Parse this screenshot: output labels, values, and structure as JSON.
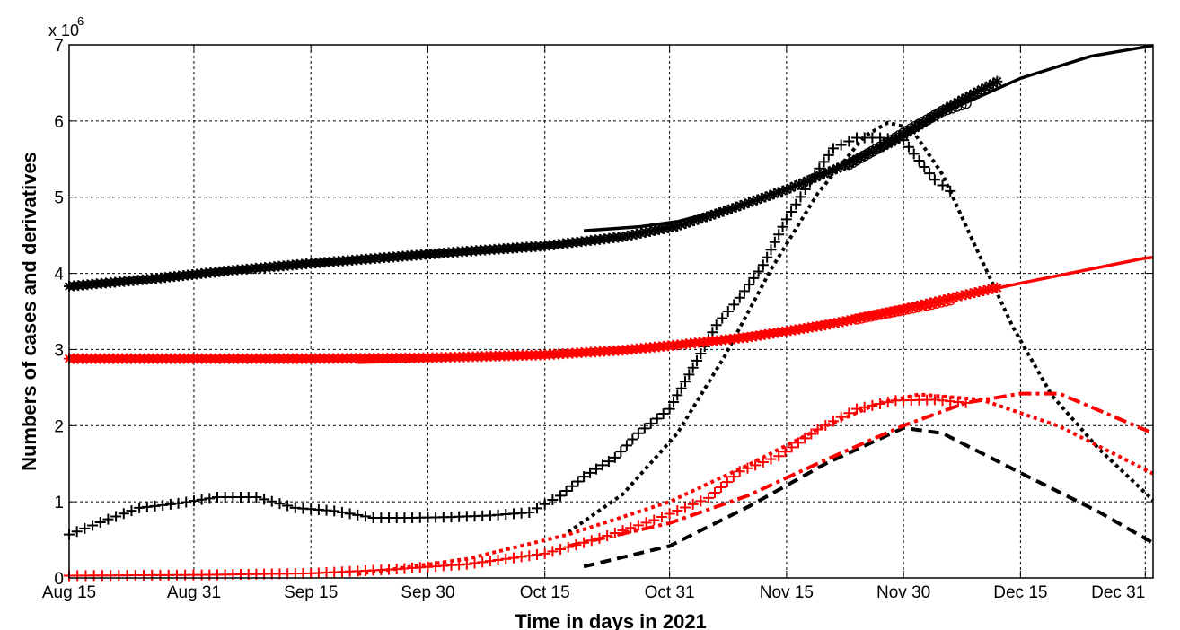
{
  "chart_data": {
    "type": "line",
    "xlabel": "Time in days in 2021",
    "ylabel": "Numbers of cases and derivatives",
    "y_exponent_base": "x 10",
    "y_exponent_power": "6",
    "x_range_days": [
      "2021-08-15",
      "2022-01-01"
    ],
    "ylim": [
      0,
      7000000
    ],
    "y_ticks": [
      {
        "value": 0,
        "label": "0"
      },
      {
        "value": 1000000,
        "label": "1"
      },
      {
        "value": 2000000,
        "label": "2"
      },
      {
        "value": 3000000,
        "label": "3"
      },
      {
        "value": 4000000,
        "label": "4"
      },
      {
        "value": 5000000,
        "label": "5"
      },
      {
        "value": 6000000,
        "label": "6"
      },
      {
        "value": 7000000,
        "label": "7"
      }
    ],
    "x_ticks": [
      {
        "date": "2021-08-15",
        "label": "Aug 15"
      },
      {
        "date": "2021-08-31",
        "label": "Aug 31"
      },
      {
        "date": "2021-09-15",
        "label": "Sep 15"
      },
      {
        "date": "2021-09-30",
        "label": "Sep 30"
      },
      {
        "date": "2021-10-15",
        "label": "Oct 15"
      },
      {
        "date": "2021-10-31",
        "label": "Oct 31"
      },
      {
        "date": "2021-11-15",
        "label": "Nov 15"
      },
      {
        "date": "2021-11-30",
        "label": "Nov 30"
      },
      {
        "date": "2021-12-15",
        "label": "Dec 15"
      },
      {
        "date": "2021-12-31",
        "label": "Dec 31"
      }
    ],
    "grid": true,
    "colors": {
      "black": "#000000",
      "red": "#ff0000"
    },
    "series": [
      {
        "key": "black-cumulative-data",
        "color": "#000000",
        "marker": "star",
        "points": [
          [
            "2021-08-15",
            3830000
          ],
          [
            "2021-08-25",
            3920000
          ],
          [
            "2021-09-05",
            4040000
          ],
          [
            "2021-09-15",
            4130000
          ],
          [
            "2021-09-25",
            4210000
          ],
          [
            "2021-10-05",
            4290000
          ],
          [
            "2021-10-15",
            4360000
          ],
          [
            "2021-10-25",
            4480000
          ],
          [
            "2021-11-01",
            4620000
          ],
          [
            "2021-11-08",
            4850000
          ],
          [
            "2021-11-15",
            5100000
          ],
          [
            "2021-11-22",
            5400000
          ],
          [
            "2021-11-29",
            5750000
          ],
          [
            "2021-12-06",
            6200000
          ],
          [
            "2021-12-12",
            6520000
          ]
        ]
      },
      {
        "key": "black-cumulative-model",
        "color": "#000000",
        "line": "solid",
        "points": [
          [
            "2021-10-20",
            4560000
          ],
          [
            "2021-10-27",
            4610000
          ],
          [
            "2021-11-01",
            4680000
          ],
          [
            "2021-11-08",
            4860000
          ],
          [
            "2021-11-15",
            5100000
          ],
          [
            "2021-11-22",
            5420000
          ],
          [
            "2021-11-29",
            5780000
          ],
          [
            "2021-12-06",
            6150000
          ],
          [
            "2021-12-15",
            6560000
          ],
          [
            "2021-12-24",
            6850000
          ],
          [
            "2022-01-01",
            6990000
          ]
        ]
      },
      {
        "key": "black-cumulative-circles",
        "color": "#000000",
        "marker": "circle",
        "points": [
          [
            "2021-11-23",
            5430000
          ],
          [
            "2021-11-27",
            5660000
          ],
          [
            "2021-12-01",
            5900000
          ],
          [
            "2021-12-05",
            6130000
          ],
          [
            "2021-12-08",
            6230000
          ]
        ]
      },
      {
        "key": "black-daily-data",
        "color": "#000000",
        "marker": "plus",
        "points": [
          [
            "2021-08-15",
            570000
          ],
          [
            "2021-08-20",
            770000
          ],
          [
            "2021-08-24",
            920000
          ],
          [
            "2021-08-29",
            980000
          ],
          [
            "2021-09-03",
            1060000
          ],
          [
            "2021-09-08",
            1060000
          ],
          [
            "2021-09-13",
            920000
          ],
          [
            "2021-09-18",
            880000
          ],
          [
            "2021-09-23",
            790000
          ],
          [
            "2021-09-28",
            790000
          ],
          [
            "2021-10-03",
            800000
          ],
          [
            "2021-10-08",
            820000
          ],
          [
            "2021-10-13",
            860000
          ],
          [
            "2021-10-17",
            1080000
          ],
          [
            "2021-10-20",
            1330000
          ],
          [
            "2021-10-24",
            1580000
          ],
          [
            "2021-10-27",
            1900000
          ],
          [
            "2021-10-31",
            2220000
          ],
          [
            "2021-11-03",
            2760000
          ],
          [
            "2021-11-06",
            3320000
          ],
          [
            "2021-11-09",
            3680000
          ],
          [
            "2021-11-12",
            4110000
          ],
          [
            "2021-11-15",
            4710000
          ],
          [
            "2021-11-18",
            5200000
          ],
          [
            "2021-11-21",
            5640000
          ],
          [
            "2021-11-24",
            5780000
          ],
          [
            "2021-11-27",
            5780000
          ],
          [
            "2021-11-30",
            5750000
          ],
          [
            "2021-12-02",
            5480000
          ],
          [
            "2021-12-04",
            5230000
          ],
          [
            "2021-12-06",
            5080000
          ]
        ]
      },
      {
        "key": "black-daily-model",
        "color": "#000000",
        "line": "dotted",
        "points": [
          [
            "2021-10-18",
            600000
          ],
          [
            "2021-10-25",
            1100000
          ],
          [
            "2021-11-01",
            1900000
          ],
          [
            "2021-11-07",
            2900000
          ],
          [
            "2021-11-13",
            4050000
          ],
          [
            "2021-11-19",
            5050000
          ],
          [
            "2021-11-25",
            5800000
          ],
          [
            "2021-11-28",
            5980000
          ],
          [
            "2021-12-01",
            5900000
          ],
          [
            "2021-12-05",
            5300000
          ],
          [
            "2021-12-09",
            4400000
          ],
          [
            "2021-12-14",
            3300000
          ],
          [
            "2021-12-19",
            2400000
          ],
          [
            "2021-12-25",
            1700000
          ],
          [
            "2022-01-01",
            1020000
          ]
        ]
      },
      {
        "key": "black-derivative-model",
        "color": "#000000",
        "line": "dashed",
        "points": [
          [
            "2021-10-20",
            150000
          ],
          [
            "2021-10-31",
            420000
          ],
          [
            "2021-11-10",
            930000
          ],
          [
            "2021-11-20",
            1500000
          ],
          [
            "2021-11-30",
            1970000
          ],
          [
            "2021-12-05",
            1900000
          ],
          [
            "2021-12-15",
            1380000
          ],
          [
            "2021-12-25",
            870000
          ],
          [
            "2022-01-01",
            460000
          ]
        ]
      },
      {
        "key": "red-cumulative-data",
        "color": "#ff0000",
        "marker": "star",
        "points": [
          [
            "2021-08-15",
            2880000
          ],
          [
            "2021-09-01",
            2880000
          ],
          [
            "2021-09-15",
            2880000
          ],
          [
            "2021-09-30",
            2890000
          ],
          [
            "2021-10-15",
            2930000
          ],
          [
            "2021-10-25",
            2990000
          ],
          [
            "2021-11-01",
            3060000
          ],
          [
            "2021-11-10",
            3160000
          ],
          [
            "2021-11-20",
            3320000
          ],
          [
            "2021-11-30",
            3530000
          ],
          [
            "2021-12-08",
            3720000
          ],
          [
            "2021-12-12",
            3810000
          ]
        ]
      },
      {
        "key": "red-cumulative-model",
        "color": "#ff0000",
        "line": "solid",
        "points": [
          [
            "2021-09-21",
            2830000
          ],
          [
            "2021-10-01",
            2860000
          ],
          [
            "2021-10-15",
            2920000
          ],
          [
            "2021-10-31",
            3060000
          ],
          [
            "2021-11-15",
            3270000
          ],
          [
            "2021-11-30",
            3540000
          ],
          [
            "2021-12-15",
            3870000
          ],
          [
            "2021-12-31",
            4200000
          ],
          [
            "2022-01-01",
            4210000
          ]
        ]
      },
      {
        "key": "red-cumulative-circles",
        "color": "#ff0000",
        "marker": "circle",
        "points": [
          [
            "2021-11-24",
            3400000
          ],
          [
            "2021-11-27",
            3460000
          ],
          [
            "2021-11-30",
            3520000
          ],
          [
            "2021-12-03",
            3580000
          ],
          [
            "2021-12-06",
            3650000
          ]
        ]
      },
      {
        "key": "red-daily-data",
        "color": "#ff0000",
        "marker": "plus",
        "points": [
          [
            "2021-08-15",
            30000
          ],
          [
            "2021-09-01",
            40000
          ],
          [
            "2021-09-15",
            60000
          ],
          [
            "2021-09-25",
            110000
          ],
          [
            "2021-10-05",
            180000
          ],
          [
            "2021-10-15",
            320000
          ],
          [
            "2021-10-22",
            520000
          ],
          [
            "2021-10-29",
            760000
          ],
          [
            "2021-11-05",
            1050000
          ],
          [
            "2021-11-09",
            1400000
          ],
          [
            "2021-11-14",
            1600000
          ],
          [
            "2021-11-19",
            1950000
          ],
          [
            "2021-11-24",
            2220000
          ],
          [
            "2021-11-29",
            2330000
          ],
          [
            "2021-12-04",
            2340000
          ],
          [
            "2021-12-08",
            2300000
          ]
        ]
      },
      {
        "key": "red-daily-model-dotted",
        "color": "#ff0000",
        "line": "dotted",
        "points": [
          [
            "2021-09-21",
            50000
          ],
          [
            "2021-10-05",
            250000
          ],
          [
            "2021-10-18",
            570000
          ],
          [
            "2021-10-31",
            1000000
          ],
          [
            "2021-11-10",
            1480000
          ],
          [
            "2021-11-19",
            1950000
          ],
          [
            "2021-11-27",
            2300000
          ],
          [
            "2021-12-02",
            2410000
          ],
          [
            "2021-12-10",
            2340000
          ],
          [
            "2021-12-20",
            1990000
          ],
          [
            "2022-01-01",
            1370000
          ]
        ]
      },
      {
        "key": "red-daily-model-dashdot",
        "color": "#ff0000",
        "line": "dashdot",
        "points": [
          [
            "2021-10-18",
            420000
          ],
          [
            "2021-10-31",
            720000
          ],
          [
            "2021-11-10",
            1080000
          ],
          [
            "2021-11-20",
            1550000
          ],
          [
            "2021-11-30",
            2000000
          ],
          [
            "2021-12-08",
            2300000
          ],
          [
            "2021-12-15",
            2420000
          ],
          [
            "2021-12-20",
            2420000
          ],
          [
            "2022-01-01",
            1900000
          ]
        ]
      }
    ]
  }
}
